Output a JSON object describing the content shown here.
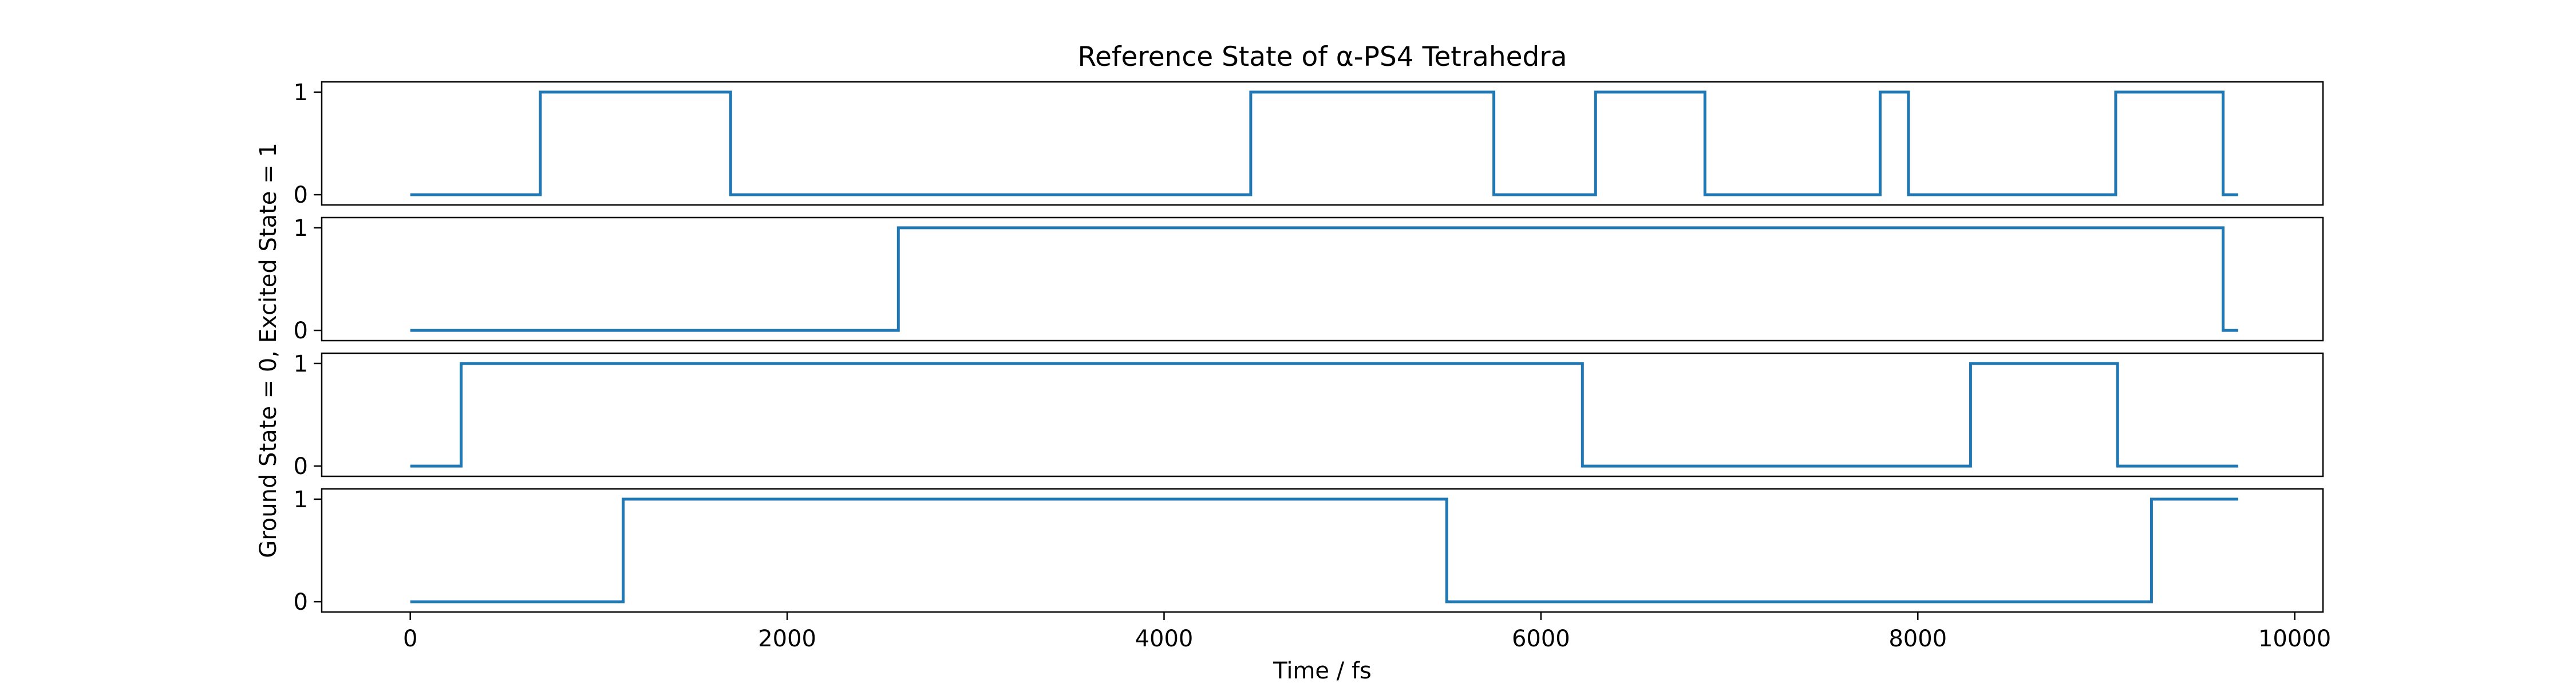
{
  "chart_data": {
    "type": "line",
    "title": "Reference State of α-PS4 Tetrahedra",
    "xlabel": "Time / fs",
    "ylabel": "Ground State = 0, Excited State = 1",
    "xlim": [
      -470,
      10150
    ],
    "ylim": [
      -0.1,
      1.1
    ],
    "x_ticks": [
      0,
      2000,
      4000,
      6000,
      8000,
      10000
    ],
    "y_ticks": [
      0,
      1
    ],
    "line_color": "#1f77b4",
    "grid": false,
    "legend": "none",
    "series": [
      {
        "x": [
          0,
          690,
          690,
          1700,
          1700,
          4460,
          4460,
          5750,
          5750,
          6290,
          6290,
          6870,
          6870,
          7800,
          7800,
          7950,
          7950,
          9050,
          9050,
          9620,
          9620,
          9700
        ],
        "values": [
          0,
          0,
          1,
          1,
          0,
          0,
          1,
          1,
          0,
          0,
          1,
          1,
          0,
          0,
          1,
          1,
          0,
          0,
          1,
          1,
          0,
          0
        ]
      },
      {
        "x": [
          0,
          2590,
          2590,
          9620,
          9620,
          9700
        ],
        "values": [
          0,
          0,
          1,
          1,
          0,
          0
        ]
      },
      {
        "x": [
          0,
          270,
          270,
          6220,
          6220,
          8280,
          8280,
          9060,
          9060,
          9700
        ],
        "values": [
          0,
          0,
          1,
          1,
          0,
          0,
          1,
          1,
          0,
          0
        ]
      },
      {
        "x": [
          0,
          1130,
          1130,
          5500,
          5500,
          9240,
          9240,
          9700
        ],
        "values": [
          0,
          0,
          1,
          1,
          0,
          0,
          1,
          1
        ]
      }
    ]
  }
}
